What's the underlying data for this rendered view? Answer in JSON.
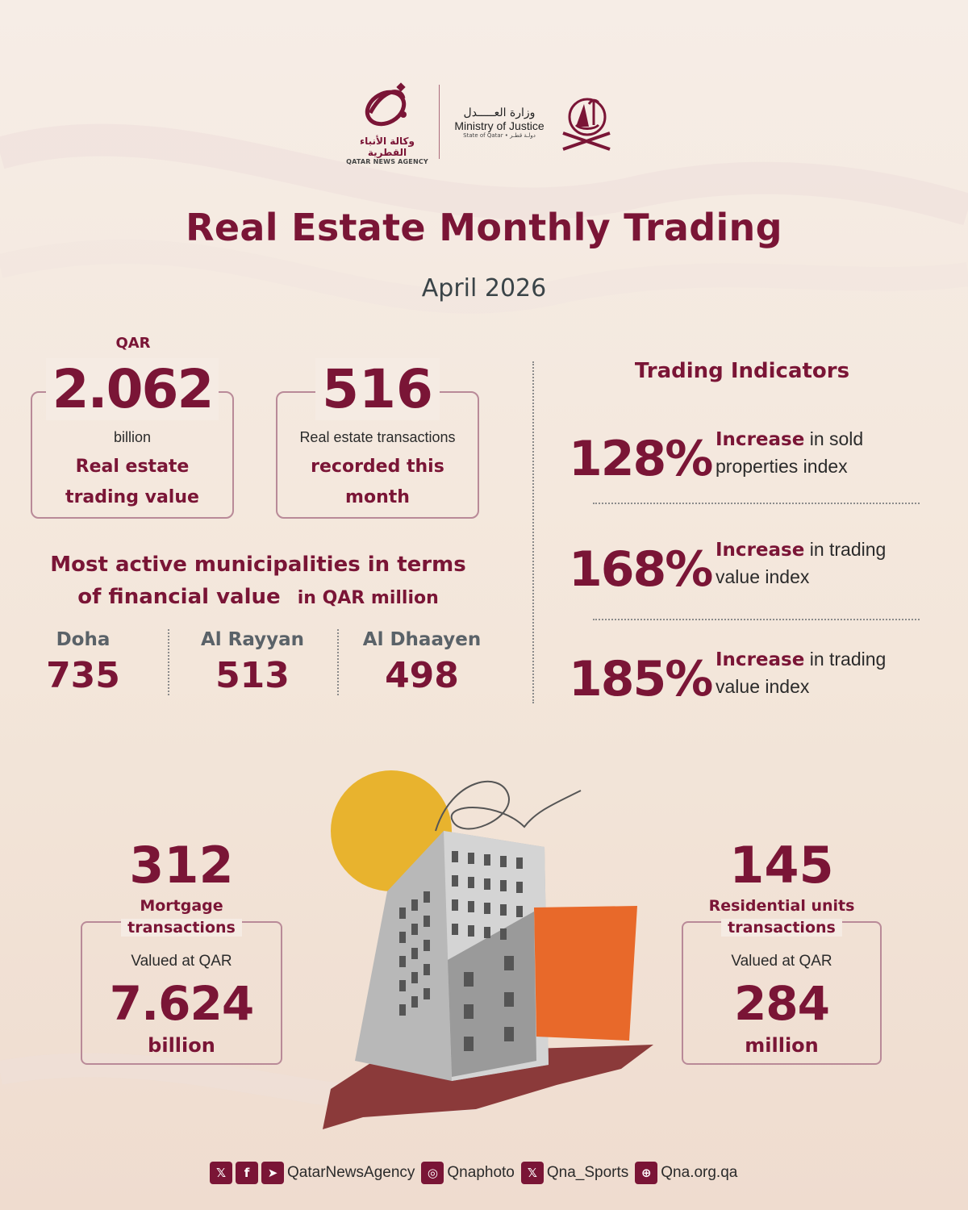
{
  "header": {
    "qna_arabic": "وكالة الأنباء القطرية",
    "qna_english": "QATAR NEWS AGENCY",
    "moj_arabic": "وزارة العـــــدل",
    "moj_english": "Ministry of Justice",
    "moj_sub": "State of Qatar • دولـة قطـر"
  },
  "title": "Real Estate Monthly Trading",
  "subtitle": "April 2026",
  "trading_value": {
    "currency": "QAR",
    "value": "2.062",
    "unit": "billion",
    "label_line1": "Real estate",
    "label_line2": "trading value"
  },
  "transactions": {
    "value": "516",
    "desc": "Real estate transactions",
    "label_line1": "recorded this",
    "label_line2": "month"
  },
  "municipalities": {
    "title_line1": "Most active municipalities in terms",
    "title_line2": "of financial value",
    "unit": "in QAR million",
    "items": [
      {
        "name": "Doha",
        "value": "735"
      },
      {
        "name": "Al Rayyan",
        "value": "513"
      },
      {
        "name": "Al Dhaayen",
        "value": "498"
      }
    ]
  },
  "indicators": {
    "title": "Trading Indicators",
    "items": [
      {
        "pct": "128%",
        "bold": "Increase",
        "rest1": " in sold",
        "line2": "properties index"
      },
      {
        "pct": "168%",
        "bold": "Increase",
        "rest1": " in trading",
        "line2": "value index"
      },
      {
        "pct": "185%",
        "bold": "Increase",
        "rest1": " in trading",
        "line2": "value index"
      }
    ]
  },
  "mortgage": {
    "count": "312",
    "label_line1": "Mortgage",
    "label_line2": "transactions",
    "valued": "Valued at QAR",
    "value": "7.624",
    "unit": "billion"
  },
  "residential": {
    "count": "145",
    "label_line1": "Residential units",
    "label_line2": "transactions",
    "valued": "Valued at QAR",
    "value": "284",
    "unit": "million"
  },
  "footer": {
    "icons": [
      "x-icon",
      "facebook-icon",
      "telegram-icon",
      "instagram-icon",
      "x-icon",
      "globe-icon"
    ],
    "handle1": "QatarNewsAgency",
    "handle2": "Qnaphoto",
    "handle3": "Qna_Sports",
    "handle4": "Qna.org.qa"
  },
  "colors": {
    "accent": "#7a1536",
    "sun": "#e8b32e",
    "orange": "#e8692a",
    "background": "#f5ebe3"
  }
}
